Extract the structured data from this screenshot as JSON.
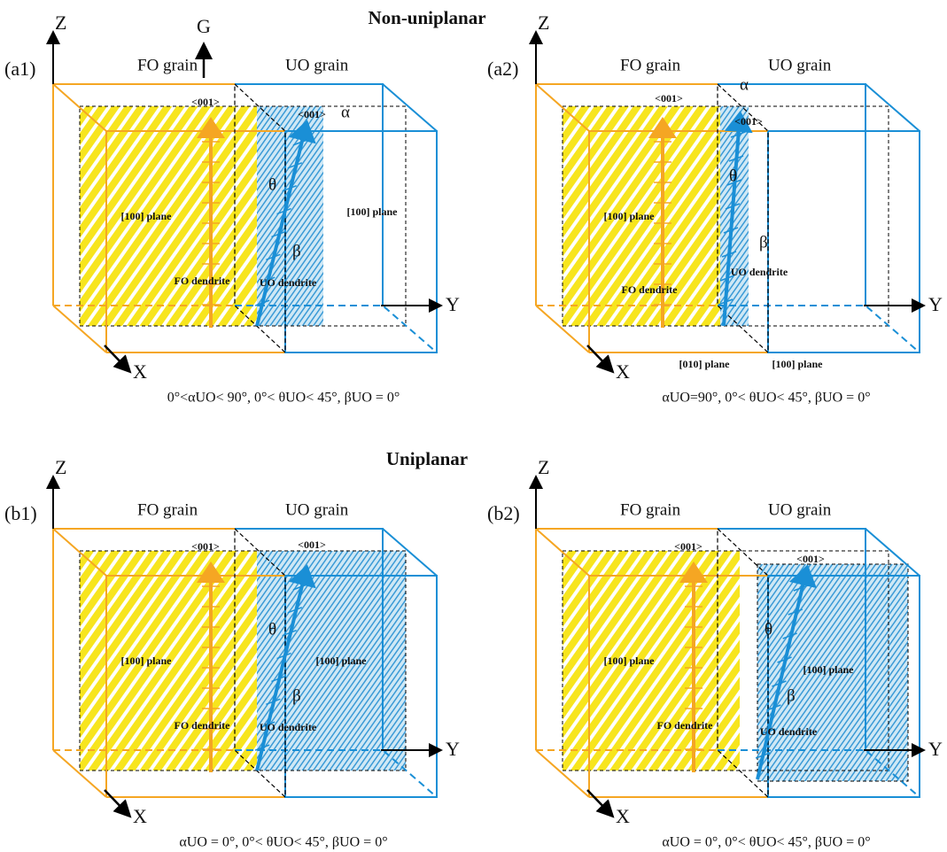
{
  "sections": [
    "Non-uniplanar",
    "Uniplanar"
  ],
  "panels": [
    {
      "label": "(a1)",
      "axes": {
        "z": "Z",
        "y": "Y",
        "x": "X"
      },
      "gradient": "G",
      "grains": [
        "FO grain",
        "UO grain"
      ],
      "directions": [
        "<001>",
        "<001>"
      ],
      "planes": [
        "[100] plane",
        "[100] plane"
      ],
      "dendrites": [
        "FO dendrite",
        "UO dendrite"
      ],
      "angles": [
        "θ",
        "β",
        "α"
      ],
      "caption": "0°<αUO< 90°, 0°< θUO< 45°, βUO = 0°"
    },
    {
      "label": "(a2)",
      "axes": {
        "z": "Z",
        "y": "Y",
        "x": "X"
      },
      "grains": [
        "FO grain",
        "UO grain"
      ],
      "directions": [
        "<001>",
        "<001>"
      ],
      "planes": [
        "[100] plane",
        "[010] plane",
        "[100] plane"
      ],
      "dendrites": [
        "FO dendrite",
        "UO dendrite"
      ],
      "angles": [
        "θ",
        "β",
        "α"
      ],
      "caption": "αUO=90°, 0°< θUO< 45°, βUO = 0°"
    },
    {
      "label": "(b1)",
      "axes": {
        "z": "Z",
        "y": "Y",
        "x": "X"
      },
      "grains": [
        "FO grain",
        "UO grain"
      ],
      "directions": [
        "<001>",
        "<001>"
      ],
      "planes": [
        "[100] plane",
        "[100] plane"
      ],
      "dendrites": [
        "FO dendrite",
        "UO dendrite"
      ],
      "angles": [
        "θ",
        "β"
      ],
      "caption": "αUO = 0°, 0°< θUO< 45°, βUO = 0°"
    },
    {
      "label": "(b2)",
      "axes": {
        "z": "Z",
        "y": "Y",
        "x": "X"
      },
      "grains": [
        "FO grain",
        "UO grain"
      ],
      "directions": [
        "<001>",
        "<001>"
      ],
      "planes": [
        "[100] plane",
        "[100] plane"
      ],
      "dendrites": [
        "FO dendrite",
        "UO dendrite"
      ],
      "angles": [
        "θ",
        "β"
      ],
      "caption": "αUO = 0°, 0°< θUO< 45°, βUO = 0°"
    }
  ]
}
